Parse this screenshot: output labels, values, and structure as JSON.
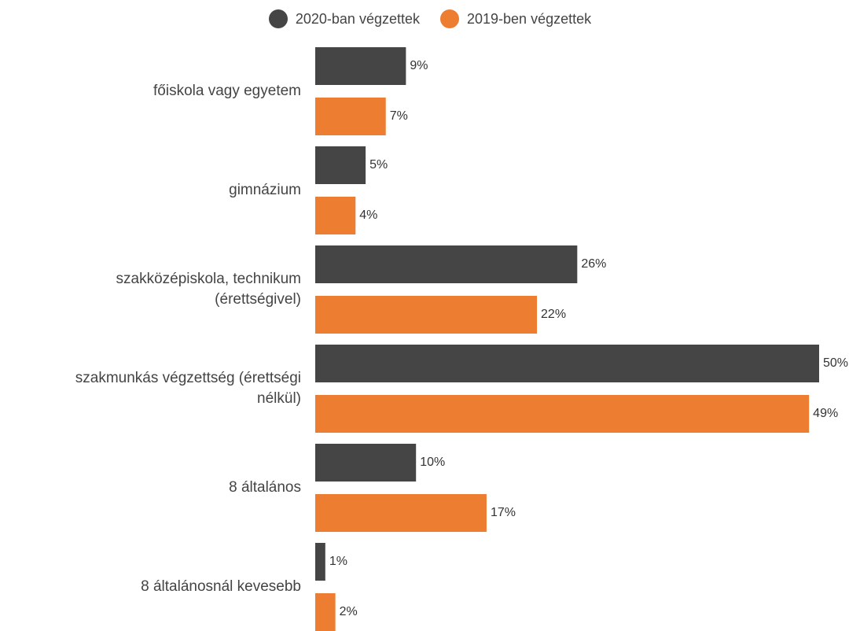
{
  "chart_data": {
    "type": "bar",
    "orientation": "horizontal",
    "categories": [
      "főiskola vagy egyetem",
      "gimnázium",
      "szakközépiskola, technikum (érettségivel)",
      "szakmunkás végzettség (érettségi nélkül)",
      "8 általános",
      "8 általánosnál kevesebb"
    ],
    "series": [
      {
        "name": "2020-ban végzettek",
        "color": "#454545",
        "values": [
          9,
          5,
          26,
          50,
          10,
          1
        ],
        "value_labels": [
          "9%",
          "5%",
          "26%",
          "50%",
          "10%",
          "1%"
        ]
      },
      {
        "name": "2019-ben végzettek",
        "color": "#ed7d31",
        "values": [
          7,
          4,
          22,
          49,
          17,
          2
        ],
        "value_labels": [
          "7%",
          "4%",
          "22%",
          "49%",
          "17%",
          "2%"
        ]
      }
    ],
    "legend": "top"
  }
}
